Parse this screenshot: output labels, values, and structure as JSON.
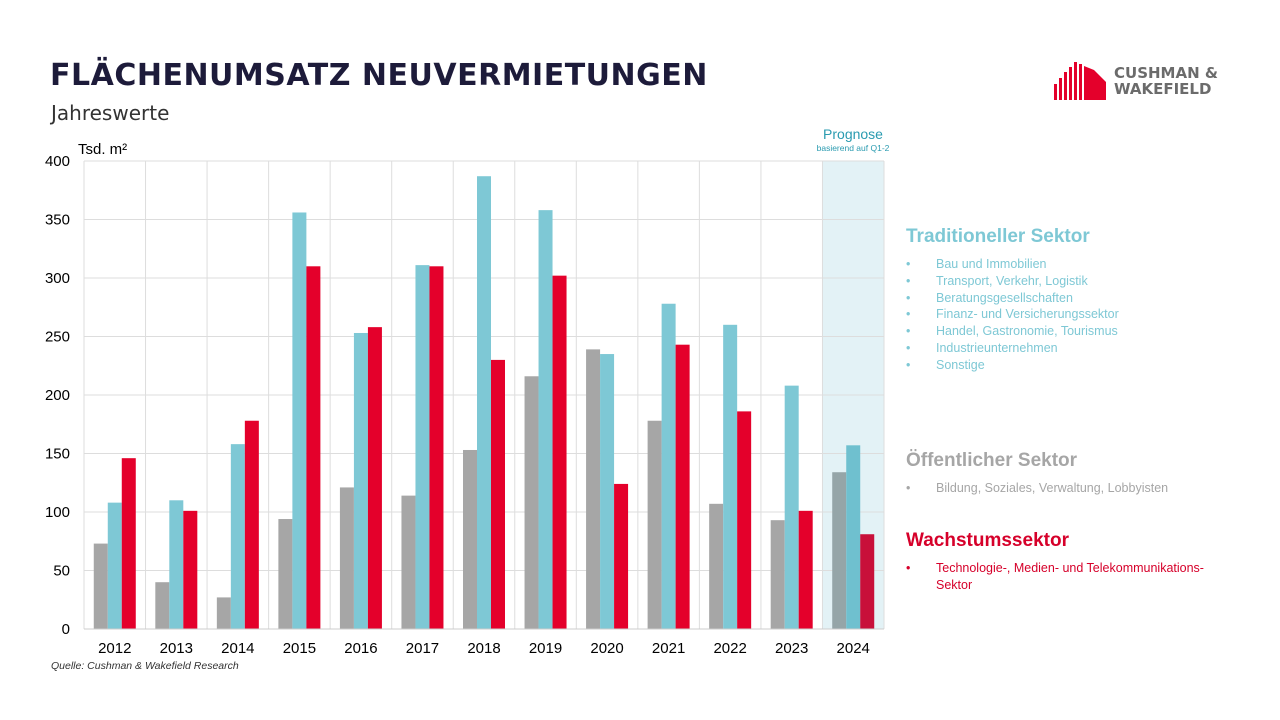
{
  "header": {
    "title": "FLÄCHENUMSATZ NEUVERMIETUNGEN",
    "subtitle": "Jahreswerte"
  },
  "logo": {
    "line1": "CUSHMAN &",
    "line2": "WAKEFIELD",
    "icon": "building-bars-icon",
    "color": "#E4002B"
  },
  "forecast": {
    "label": "Prognose",
    "sublabel": "basierend auf Q1-2"
  },
  "legend": {
    "traditional": {
      "title": "Traditioneller Sektor",
      "color": "#7EC8D5",
      "items": [
        "Bau und Immobilien",
        "Transport, Verkehr, Logistik",
        "Beratungsgesellschaften",
        "Finanz- und Versicherungssektor",
        "Handel, Gastronomie, Tourismus",
        "Industrieunternehmen",
        "Sonstige"
      ]
    },
    "public": {
      "title": "Öffentlicher Sektor",
      "color": "#A6A6A6",
      "items": [
        "Bildung, Soziales, Verwaltung, Lobbyisten"
      ]
    },
    "growth": {
      "title": "Wachstumssektor",
      "color": "#E4002B",
      "items": [
        "Technologie-, Medien- und Telekommunikations-Sektor"
      ]
    }
  },
  "source": "Quelle: Cushman & Wakefield Research",
  "chart_data": {
    "type": "bar",
    "title": "FLÄCHENUMSATZ NEUVERMIETUNGEN",
    "subtitle": "Jahreswerte",
    "xlabel": "",
    "ylabel": "Tsd. m²",
    "ylim": [
      0,
      400
    ],
    "yticks": [
      0,
      50,
      100,
      150,
      200,
      250,
      300,
      350,
      400
    ],
    "grid": true,
    "categories": [
      "2012",
      "2013",
      "2014",
      "2015",
      "2016",
      "2017",
      "2018",
      "2019",
      "2020",
      "2021",
      "2022",
      "2023",
      "2024"
    ],
    "forecast_categories": [
      "2024"
    ],
    "forecast_annotation": "Prognose basierend auf Q1-2",
    "legend_position": "right",
    "series": [
      {
        "name": "Öffentlicher Sektor",
        "color": "#A6A6A6",
        "forecast_color": "#95A5A8",
        "values": [
          73,
          40,
          27,
          94,
          121,
          114,
          153,
          216,
          239,
          178,
          107,
          93,
          134
        ]
      },
      {
        "name": "Traditioneller Sektor",
        "color": "#7EC8D5",
        "forecast_color": "#6FC0CF",
        "values": [
          108,
          110,
          158,
          356,
          253,
          311,
          387,
          358,
          235,
          278,
          260,
          208,
          157
        ]
      },
      {
        "name": "Wachstumssektor",
        "color": "#E4002B",
        "forecast_color": "#C8103A",
        "values": [
          146,
          101,
          178,
          310,
          258,
          310,
          230,
          302,
          124,
          243,
          186,
          101,
          81
        ]
      }
    ]
  }
}
